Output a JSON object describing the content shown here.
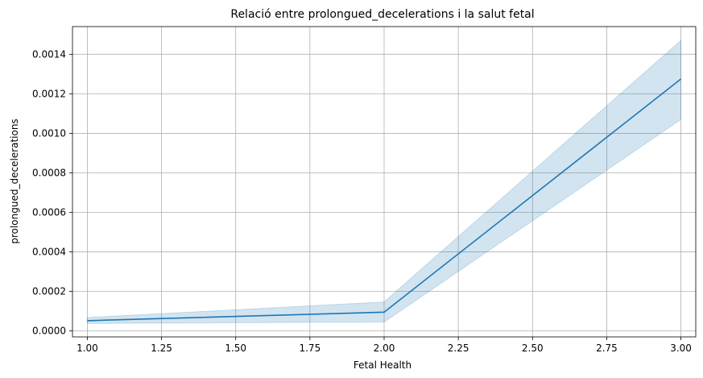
{
  "chart_data": {
    "type": "line",
    "title": "Relació entre prolongued_decelerations i la salut fetal",
    "xlabel": "Fetal Health",
    "ylabel": "prolongued_decelerations",
    "x": [
      1.0,
      2.0,
      3.0
    ],
    "series": [
      {
        "values": [
          5.2e-05,
          9.5e-05,
          0.001275
        ],
        "ci_lower": [
          3.8e-05,
          4.5e-05,
          0.00107
        ],
        "ci_upper": [
          6.8e-05,
          0.000147,
          0.00147
        ]
      }
    ],
    "xlim": [
      0.95,
      3.05
    ],
    "ylim": [
      -3e-05,
      0.00154
    ],
    "xticks": [
      1.0,
      1.25,
      1.5,
      1.75,
      2.0,
      2.25,
      2.5,
      2.75,
      3.0
    ],
    "xtick_labels": [
      "1.00",
      "1.25",
      "1.50",
      "1.75",
      "2.00",
      "2.25",
      "2.50",
      "2.75",
      "3.00"
    ],
    "yticks": [
      0,
      0.0002,
      0.0004,
      0.0006,
      0.0008,
      0.001,
      0.0012,
      0.0014
    ],
    "ytick_labels": [
      "0.0000",
      "0.0002",
      "0.0004",
      "0.0006",
      "0.0008",
      "0.0010",
      "0.0012",
      "0.0014"
    ],
    "grid": true,
    "colors": {
      "line": "#1f77b4",
      "band": "#1f77b4",
      "grid": "#b0b0b0"
    }
  }
}
